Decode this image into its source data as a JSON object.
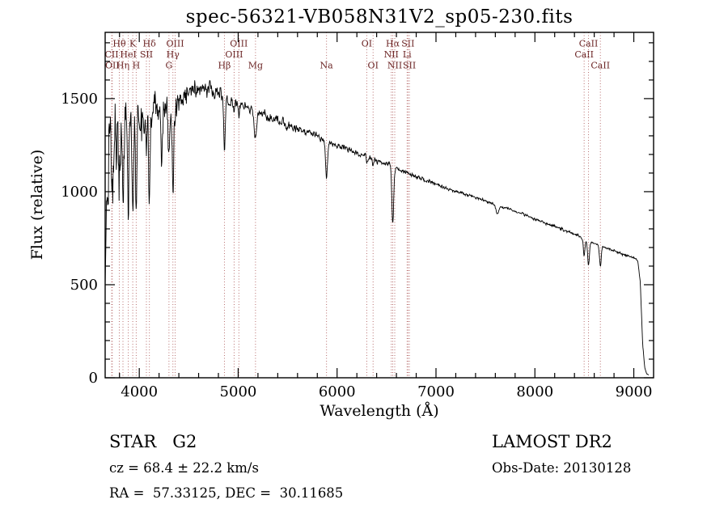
{
  "chart_data": {
    "type": "line",
    "title": "spec-56321-VB058N31V2_sp05-230.fits",
    "xlabel": "Wavelength (Å)",
    "ylabel": "Flux (relative)",
    "xlim": [
      3655,
      9200
    ],
    "ylim": [
      0,
      1856
    ],
    "xticks": [
      4000,
      5000,
      6000,
      7000,
      8000,
      9000
    ],
    "yticks": [
      0,
      500,
      1000,
      1500
    ],
    "x_minor_step": 200,
    "y_minor_step": 100,
    "grid": false,
    "line_color": "#000000",
    "marker_line_color": "#b86e6e",
    "marker_label_color": "#6b2424",
    "spectrum": {
      "step": 4,
      "seed": 20130128,
      "continuum": [
        [
          3655,
          500
        ],
        [
          3675,
          1050
        ],
        [
          3695,
          1300
        ],
        [
          3730,
          1340
        ],
        [
          3780,
          1310
        ],
        [
          3830,
          1330
        ],
        [
          3880,
          1360
        ],
        [
          3930,
          1400
        ],
        [
          3980,
          1410
        ],
        [
          4030,
          1420
        ],
        [
          4080,
          1430
        ],
        [
          4130,
          1440
        ],
        [
          4200,
          1430
        ],
        [
          4270,
          1440
        ],
        [
          4340,
          1460
        ],
        [
          4420,
          1490
        ],
        [
          4500,
          1520
        ],
        [
          4600,
          1545
        ],
        [
          4700,
          1550
        ],
        [
          4800,
          1530
        ],
        [
          4900,
          1490
        ],
        [
          5000,
          1465
        ],
        [
          5100,
          1450
        ],
        [
          5200,
          1425
        ],
        [
          5300,
          1400
        ],
        [
          5400,
          1380
        ],
        [
          5500,
          1358
        ],
        [
          5600,
          1338
        ],
        [
          5700,
          1318
        ],
        [
          5800,
          1298
        ],
        [
          5900,
          1272
        ],
        [
          6000,
          1248
        ],
        [
          6100,
          1228
        ],
        [
          6200,
          1208
        ],
        [
          6300,
          1188
        ],
        [
          6400,
          1168
        ],
        [
          6500,
          1148
        ],
        [
          6600,
          1122
        ],
        [
          6700,
          1100
        ],
        [
          6800,
          1080
        ],
        [
          6900,
          1060
        ],
        [
          7000,
          1040
        ],
        [
          7100,
          1020
        ],
        [
          7200,
          1002
        ],
        [
          7300,
          986
        ],
        [
          7400,
          968
        ],
        [
          7500,
          950
        ],
        [
          7600,
          932
        ],
        [
          7700,
          913
        ],
        [
          7800,
          894
        ],
        [
          7900,
          874
        ],
        [
          8000,
          854
        ],
        [
          8100,
          834
        ],
        [
          8200,
          814
        ],
        [
          8300,
          794
        ],
        [
          8400,
          772
        ],
        [
          8500,
          748
        ],
        [
          8600,
          724
        ],
        [
          8700,
          702
        ],
        [
          8800,
          682
        ],
        [
          8900,
          662
        ],
        [
          9000,
          645
        ],
        [
          9040,
          628
        ],
        [
          9065,
          520
        ],
        [
          9090,
          180
        ],
        [
          9110,
          55
        ],
        [
          9130,
          20
        ],
        [
          9150,
          14
        ]
      ],
      "absorption_lines": [
        [
          3721,
          260,
          6
        ],
        [
          3727,
          260,
          6
        ],
        [
          3798,
          340,
          7
        ],
        [
          3835,
          380,
          7
        ],
        [
          3889,
          430,
          7
        ],
        [
          3934,
          560,
          8
        ],
        [
          3969,
          520,
          8
        ],
        [
          4072,
          200,
          6
        ],
        [
          4102,
          480,
          8
        ],
        [
          4227,
          320,
          6
        ],
        [
          4300,
          230,
          10
        ],
        [
          4340,
          460,
          8
        ],
        [
          4363,
          90,
          5
        ],
        [
          4861,
          280,
          8
        ],
        [
          4959,
          40,
          5
        ],
        [
          5007,
          50,
          5
        ],
        [
          5175,
          150,
          12
        ],
        [
          5893,
          200,
          10
        ],
        [
          6300,
          40,
          5
        ],
        [
          6364,
          30,
          5
        ],
        [
          6563,
          310,
          9
        ],
        [
          7620,
          45,
          14
        ],
        [
          8498,
          90,
          8
        ],
        [
          8542,
          130,
          9
        ],
        [
          8662,
          110,
          9
        ]
      ],
      "noise_amplitude": [
        [
          3655,
          255
        ],
        [
          3900,
          175
        ],
        [
          4150,
          115
        ],
        [
          4400,
          75
        ],
        [
          4700,
          48
        ],
        [
          5000,
          34
        ],
        [
          5400,
          26
        ],
        [
          6000,
          19
        ],
        [
          6600,
          14
        ],
        [
          7200,
          11
        ],
        [
          8000,
          9
        ],
        [
          8900,
          8
        ],
        [
          9060,
          6
        ],
        [
          9150,
          5
        ]
      ]
    },
    "markers": [
      {
        "label": "CII",
        "wl": 3721,
        "row": 2
      },
      {
        "label": "OII",
        "wl": 3727,
        "row": 3
      },
      {
        "label": "Hθ",
        "wl": 3798,
        "row": 1
      },
      {
        "label": "Hη",
        "wl": 3835,
        "row": 3
      },
      {
        "label": "HeI",
        "wl": 3889,
        "row": 2
      },
      {
        "label": "K",
        "wl": 3934,
        "row": 1
      },
      {
        "label": "H",
        "wl": 3969,
        "row": 3
      },
      {
        "label": "SII",
        "wl": 4072,
        "row": 2
      },
      {
        "label": "Hδ",
        "wl": 4102,
        "row": 1
      },
      {
        "label": "G",
        "wl": 4300,
        "row": 3
      },
      {
        "label": "Hγ",
        "wl": 4340,
        "row": 2
      },
      {
        "label": "OIII",
        "wl": 4363,
        "row": 1
      },
      {
        "label": "Hβ",
        "wl": 4861,
        "row": 3
      },
      {
        "label": "OIII",
        "wl": 4959,
        "row": 2
      },
      {
        "label": "OIII",
        "wl": 5007,
        "row": 1
      },
      {
        "label": "Mg",
        "wl": 5175,
        "row": 3
      },
      {
        "label": "Na",
        "wl": 5893,
        "row": 3
      },
      {
        "label": "OI",
        "wl": 6300,
        "row": 1
      },
      {
        "label": "OI",
        "wl": 6364,
        "row": 3
      },
      {
        "label": "NII",
        "wl": 6548,
        "row": 2
      },
      {
        "label": "Hα",
        "wl": 6563,
        "row": 1
      },
      {
        "label": "NII",
        "wl": 6583,
        "row": 3
      },
      {
        "label": "Li",
        "wl": 6708,
        "row": 2
      },
      {
        "label": "SII",
        "wl": 6717,
        "row": 1
      },
      {
        "label": "SII",
        "wl": 6731,
        "row": 3
      },
      {
        "label": "CaII",
        "wl": 8498,
        "row": 2
      },
      {
        "label": "CaII",
        "wl": 8542,
        "row": 1
      },
      {
        "label": "CaII",
        "wl": 8662,
        "row": 3
      }
    ]
  },
  "footer": {
    "star_class": "STAR   G2",
    "survey": "LAMOST DR2",
    "cz": "cz = 68.4 ± 22.2 km/s",
    "obs_date": "Obs-Date: 20130128",
    "radec": "RA =  57.33125, DEC =  30.11685"
  }
}
